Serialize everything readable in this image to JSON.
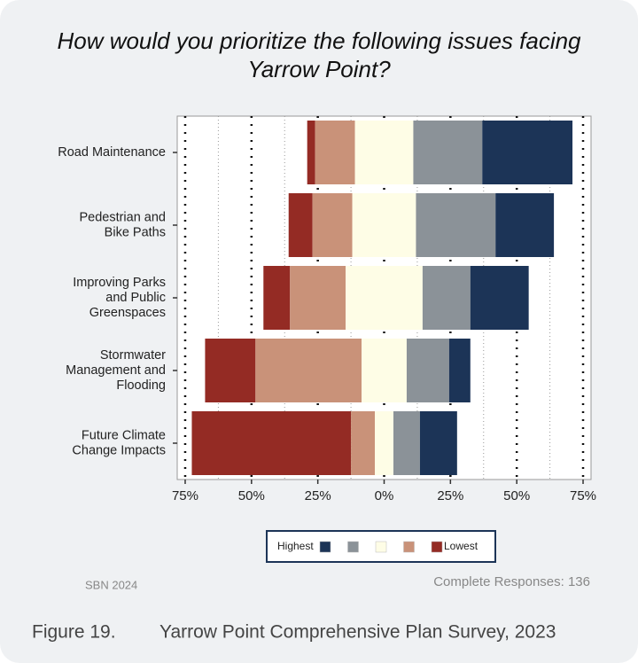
{
  "chart_data": {
    "type": "diverging_bar",
    "title": "How would you prioritize the following issues facing Yarrow Point?",
    "categories": [
      "Road Maintenance",
      "Pedestrian and\nBike Paths",
      "Improving Parks\nand Public\nGreenspaces",
      "Stormwater\nManagement and\nFlooding",
      "Future Climate\nChange Impacts"
    ],
    "series": [
      {
        "name": "Lowest",
        "color": "#942b24",
        "values": [
          3,
          9,
          10,
          19,
          60
        ]
      },
      {
        "name": null,
        "color": "#c99279",
        "values": [
          15,
          15,
          21,
          40,
          9
        ]
      },
      {
        "name": null,
        "color": "#fefde6",
        "values": [
          22,
          24,
          29,
          17,
          7
        ]
      },
      {
        "name": null,
        "color": "#8b9298",
        "values": [
          26,
          30,
          18,
          16,
          10
        ]
      },
      {
        "name": "Highest",
        "color": "#1c3457",
        "values": [
          34,
          22,
          22,
          8,
          14
        ]
      }
    ],
    "neutral_series": 2,
    "xlim": [
      -78,
      78
    ],
    "xticks": [
      {
        "value": -75,
        "label": "75%"
      },
      {
        "value": -50,
        "label": "50%"
      },
      {
        "value": -25,
        "label": "25%"
      },
      {
        "value": 0,
        "label": "0%"
      },
      {
        "value": 25,
        "label": "25%"
      },
      {
        "value": 50,
        "label": "50%"
      },
      {
        "value": 75,
        "label": "75%"
      }
    ],
    "minor_xticks": [
      -62.5,
      -37.5,
      -12.5,
      12.5,
      37.5,
      62.5
    ],
    "grid": true,
    "source": "SBN 2024",
    "annotation": "Complete Responses: 136",
    "figure_label": "Figure 19.",
    "caption": "Yarrow Point Comprehensive Plan Survey, 2023"
  }
}
